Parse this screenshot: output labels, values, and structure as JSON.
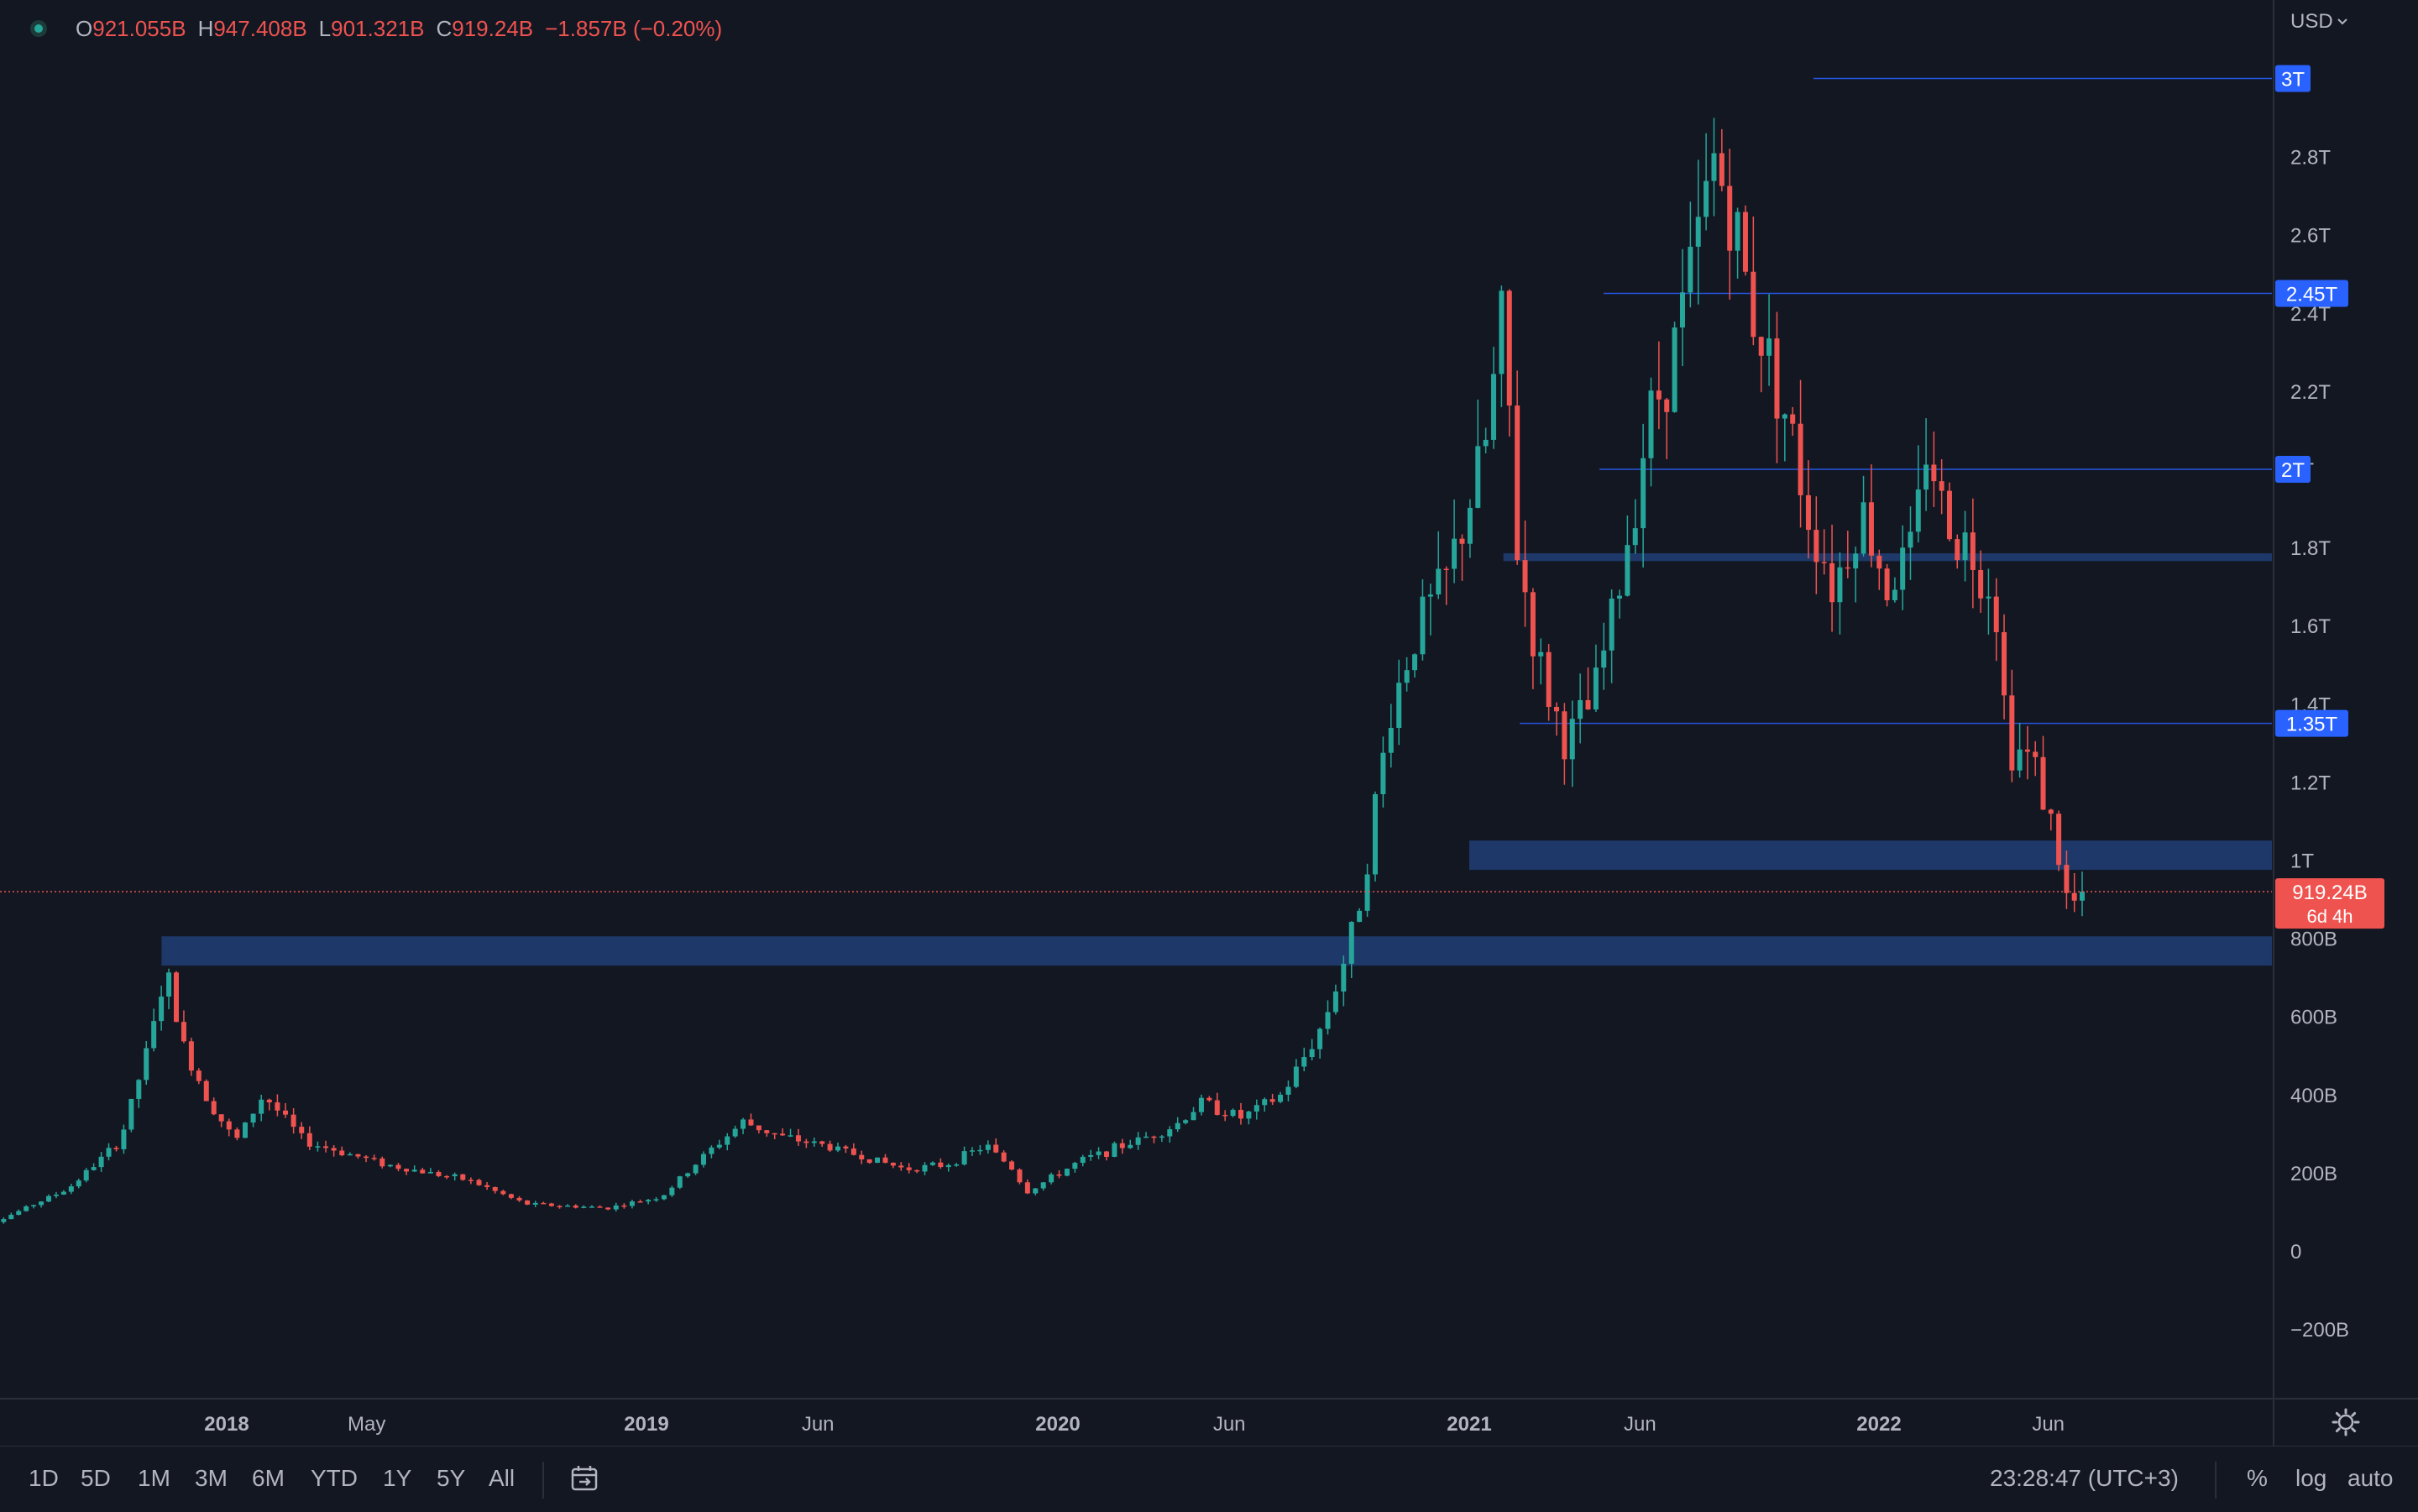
{
  "header": {
    "open_label": "O",
    "open_value": "921.055B",
    "high_label": "H",
    "high_value": "947.408B",
    "low_label": "L",
    "low_value": "901.321B",
    "close_label": "C",
    "close_value": "919.24B",
    "change": "−1.857B (−0.20%)"
  },
  "currency": "USD",
  "toolbar": {
    "timeframes": [
      "1D",
      "5D",
      "1M",
      "3M",
      "6M",
      "YTD",
      "1Y",
      "5Y",
      "All"
    ],
    "clock": "23:28:47 (UTC+3)",
    "percent_label": "%",
    "log_label": "log",
    "auto_label": "auto"
  },
  "colors": {
    "up": "#26a69a",
    "down": "#ef5350",
    "zone": "#1e3a6e",
    "level_line": "#2962ff",
    "level_label": "#2962ff",
    "price_tag": "#ef5350"
  },
  "chart_data": {
    "type": "candlestick",
    "title": "",
    "xlabel": "",
    "ylabel": "",
    "x_range": [
      "2017-06",
      "2022-12"
    ],
    "ylim": [
      -300,
      3150
    ],
    "y_unit": "USD (B)",
    "y_ticks": [
      {
        "value": -200,
        "label": "−200B"
      },
      {
        "value": 0,
        "label": "0"
      },
      {
        "value": 200,
        "label": "200B"
      },
      {
        "value": 400,
        "label": "400B"
      },
      {
        "value": 600,
        "label": "600B"
      },
      {
        "value": 800,
        "label": "800B"
      },
      {
        "value": 1000,
        "label": "1T"
      },
      {
        "value": 1200,
        "label": "1.2T"
      },
      {
        "value": 1400,
        "label": "1.4T"
      },
      {
        "value": 1600,
        "label": "1.6T"
      },
      {
        "value": 1800,
        "label": "1.8T"
      },
      {
        "value": 2000,
        "label": "2T"
      },
      {
        "value": 2200,
        "label": "2.2T"
      },
      {
        "value": 2400,
        "label": "2.4T"
      },
      {
        "value": 2600,
        "label": "2.6T"
      },
      {
        "value": 2800,
        "label": "2.8T"
      }
    ],
    "x_ticks": [
      {
        "date": "2018-01",
        "label": "2018",
        "bold": true
      },
      {
        "date": "2018-05",
        "label": "May",
        "bold": false
      },
      {
        "date": "2019-01",
        "label": "2019",
        "bold": true
      },
      {
        "date": "2019-06",
        "label": "Jun",
        "bold": false
      },
      {
        "date": "2020-01",
        "label": "2020",
        "bold": true
      },
      {
        "date": "2020-06",
        "label": "Jun",
        "bold": false
      },
      {
        "date": "2021-01",
        "label": "2021",
        "bold": true
      },
      {
        "date": "2021-06",
        "label": "Jun",
        "bold": false
      },
      {
        "date": "2022-01",
        "label": "2022",
        "bold": true
      },
      {
        "date": "2022-06",
        "label": "Jun",
        "bold": false
      }
    ],
    "key_prices": [
      [
        0.0,
        45
      ],
      [
        1.5,
        85
      ],
      [
        4.0,
        160
      ],
      [
        6.0,
        280
      ],
      [
        7.2,
        540
      ],
      [
        7.8,
        720
      ],
      [
        8.5,
        520
      ],
      [
        9.5,
        380
      ],
      [
        10.5,
        280
      ],
      [
        11.5,
        400
      ],
      [
        13.0,
        280
      ],
      [
        16.0,
        220
      ],
      [
        19.0,
        180
      ],
      [
        21.0,
        120
      ],
      [
        24.0,
        110
      ],
      [
        26.0,
        140
      ],
      [
        27.5,
        240
      ],
      [
        29.0,
        330
      ],
      [
        30.5,
        290
      ],
      [
        32.0,
        270
      ],
      [
        35.0,
        210
      ],
      [
        36.5,
        220
      ],
      [
        38.0,
        270
      ],
      [
        39.0,
        210
      ],
      [
        39.5,
        150
      ],
      [
        41.5,
        230
      ],
      [
        43.5,
        280
      ],
      [
        45.0,
        320
      ],
      [
        46.0,
        380
      ],
      [
        47.5,
        340
      ],
      [
        49.0,
        400
      ],
      [
        50.5,
        580
      ],
      [
        51.5,
        790
      ],
      [
        52.0,
        950
      ],
      [
        53.0,
        1380
      ],
      [
        54.0,
        1600
      ],
      [
        55.0,
        1700
      ],
      [
        56.5,
        2050
      ],
      [
        57.2,
        2400
      ],
      [
        57.7,
        1800
      ],
      [
        58.5,
        1500
      ],
      [
        59.5,
        1300
      ],
      [
        60.5,
        1400
      ],
      [
        61.5,
        1700
      ],
      [
        62.5,
        2100
      ],
      [
        63.5,
        2300
      ],
      [
        64.5,
        2600
      ],
      [
        65.0,
        2800
      ],
      [
        65.5,
        2700
      ],
      [
        66.5,
        2400
      ],
      [
        67.5,
        2200
      ],
      [
        68.5,
        1900
      ],
      [
        69.5,
        1700
      ],
      [
        70.5,
        1900
      ],
      [
        71.5,
        1700
      ],
      [
        72.5,
        1800
      ],
      [
        73.0,
        2100
      ],
      [
        73.5,
        1900
      ],
      [
        74.5,
        1800
      ],
      [
        75.5,
        1700
      ],
      [
        76.0,
        1300
      ],
      [
        77.0,
        1250
      ],
      [
        77.8,
        1050
      ],
      [
        78.3,
        870
      ],
      [
        78.8,
        919
      ]
    ],
    "date_start": "2017-05",
    "date_end": "2022-07",
    "levels": [
      {
        "value": 3000,
        "label": "3T"
      },
      {
        "value": 2450,
        "label": "2.45T"
      },
      {
        "value": 2000,
        "label": "2T"
      },
      {
        "value": 1350,
        "label": "1.35T"
      }
    ],
    "zones": [
      {
        "low": 1765,
        "high": 1785,
        "start": "2021-02"
      },
      {
        "low": 975,
        "high": 1050,
        "start": "2021-01"
      },
      {
        "low": 730,
        "high": 805,
        "start": "2017-11"
      }
    ],
    "current_price": {
      "value": 919.24,
      "label": "919.24B",
      "countdown": "6d 4h"
    }
  }
}
